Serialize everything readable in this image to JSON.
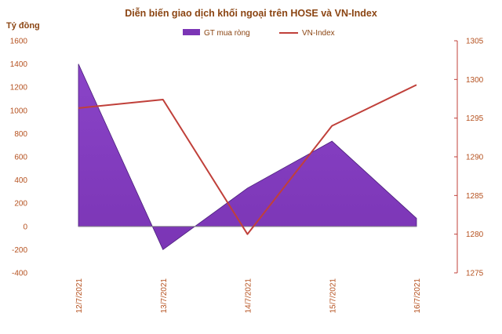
{
  "chart_data": {
    "type": "area",
    "title": "Diễn biến giao dịch khối ngoại trên HOSE và VN-Index",
    "ylabel": "Tỷ đồng",
    "categories": [
      "12/7/2021",
      "13/7/2021",
      "14/7/2021",
      "15/7/2021",
      "16/7/2021"
    ],
    "series": [
      {
        "name": "GT mua ròng",
        "type": "area",
        "axis": "left",
        "color": "#7B35B5",
        "values": [
          1400,
          -200,
          330,
          735,
          70
        ]
      },
      {
        "name": "VN-Index",
        "type": "line",
        "axis": "right",
        "color": "#C0403A",
        "values": [
          1296.3,
          1297.4,
          1280,
          1294,
          1299.3
        ]
      }
    ],
    "ylim": [
      -400,
      1600
    ],
    "yticks": [
      "1600",
      "1400",
      "1200",
      "1000",
      "800",
      "600",
      "400",
      "200",
      "0",
      "-200",
      "-400"
    ],
    "ylim_right": [
      1275,
      1305
    ],
    "yticks_right": [
      "1305",
      "1300",
      "1295",
      "1290",
      "1285",
      "1280",
      "1275"
    ],
    "legend_position": "top",
    "grid": false
  }
}
